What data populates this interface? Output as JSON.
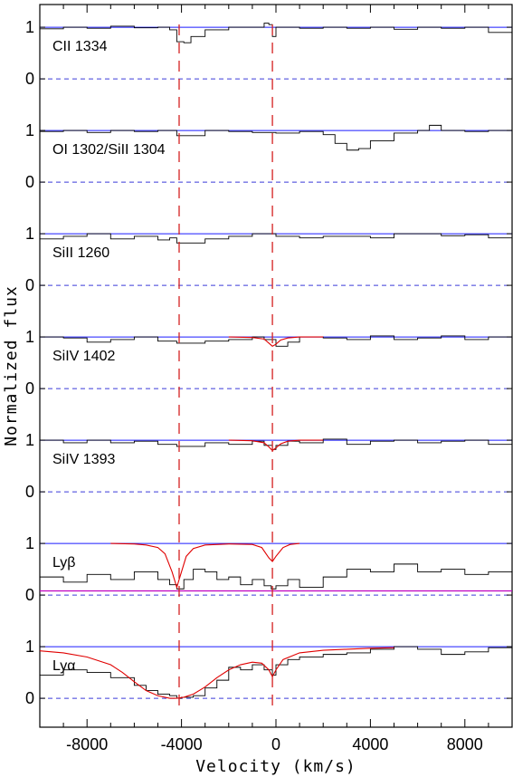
{
  "chart_data": {
    "type": "line",
    "xlabel": "Velocity (km/s)",
    "ylabel": "Normalized flux",
    "xlim": [
      -10000,
      10000
    ],
    "x_ticks": [
      -8000,
      -4000,
      0,
      4000,
      8000
    ],
    "x_tick_labels": [
      "-8000",
      "-4000",
      "0",
      "4000",
      "8000"
    ],
    "y_ticks": [
      0,
      1
    ],
    "y_tick_labels": [
      "0",
      "1"
    ],
    "reference_velocities": [
      -4100,
      -150
    ],
    "colors": {
      "spectrum": "#000000",
      "continuum": "#1a1aff",
      "zero_level": "#3b3bd9",
      "model_fit": "#e00000",
      "background_level": "#c000c0",
      "reference_marker": "#d42020"
    },
    "panels": [
      {
        "label": "CII 1334",
        "spectrum": {
          "x": [
            -10000,
            -9000,
            -8000,
            -7000,
            -6000,
            -5000,
            -4500,
            -4200,
            -3900,
            -3600,
            -3000,
            -2000,
            -1000,
            -500,
            -300,
            -150,
            0,
            500,
            1000,
            2000,
            3000,
            4000,
            5000,
            6000,
            7000,
            8000,
            9000,
            10000
          ],
          "y": [
            0.97,
            1.0,
            0.98,
            1.02,
            0.99,
            1.0,
            0.95,
            0.72,
            0.7,
            0.82,
            0.95,
            1.0,
            1.0,
            1.08,
            1.05,
            0.82,
            1.0,
            1.0,
            0.98,
            1.0,
            0.98,
            1.0,
            0.96,
            1.0,
            0.98,
            1.0,
            0.9,
            0.92
          ]
        }
      },
      {
        "label": "OI 1302/SiII 1304",
        "spectrum": {
          "x": [
            -10000,
            -9000,
            -8000,
            -7000,
            -6000,
            -5000,
            -4200,
            -3000,
            -2000,
            -1000,
            0,
            1000,
            2000,
            2500,
            3000,
            3500,
            4000,
            5000,
            6000,
            6500,
            7000,
            8000,
            9000,
            10000
          ],
          "y": [
            0.98,
            1.0,
            0.96,
            1.0,
            0.98,
            1.0,
            0.9,
            1.0,
            0.98,
            0.96,
            0.95,
            0.98,
            0.92,
            0.75,
            0.62,
            0.65,
            0.8,
            0.95,
            1.0,
            1.1,
            1.0,
            0.98,
            1.0,
            0.95
          ]
        }
      },
      {
        "label": "SiII 1260",
        "spectrum": {
          "x": [
            -10000,
            -9000,
            -8000,
            -7000,
            -6000,
            -5000,
            -4500,
            -4200,
            -3000,
            -2000,
            -1000,
            0,
            1000,
            2000,
            3000,
            4000,
            5000,
            6000,
            7000,
            8000,
            9000,
            10000
          ],
          "y": [
            0.9,
            0.95,
            1.0,
            0.9,
            0.95,
            0.88,
            0.92,
            0.82,
            0.9,
            0.95,
            1.0,
            0.95,
            0.92,
            0.95,
            0.95,
            0.92,
            1.0,
            1.0,
            0.96,
            0.98,
            0.92,
            0.96
          ]
        }
      },
      {
        "label": "SiIV 1402",
        "spectrum": {
          "x": [
            -10000,
            -9000,
            -8000,
            -7000,
            -6000,
            -5000,
            -4200,
            -3000,
            -2000,
            -1000,
            -500,
            0,
            500,
            1000,
            2000,
            3000,
            4000,
            5000,
            6000,
            7000,
            8000,
            9000,
            10000
          ],
          "y": [
            1.0,
            0.98,
            0.9,
            0.95,
            1.0,
            0.92,
            0.88,
            0.92,
            0.95,
            1.0,
            0.95,
            0.82,
            0.9,
            1.0,
            0.98,
            0.95,
            1.02,
            0.95,
            0.98,
            1.02,
            0.95,
            1.0,
            0.98
          ]
        },
        "model": {
          "x": [
            -2000,
            -1000,
            -500,
            -300,
            -150,
            0,
            200,
            500,
            1000,
            2000
          ],
          "y": [
            1.0,
            0.99,
            0.96,
            0.88,
            0.82,
            0.86,
            0.94,
            0.98,
            1.0,
            1.0
          ]
        }
      },
      {
        "label": "SiIV 1393",
        "spectrum": {
          "x": [
            -10000,
            -9000,
            -8000,
            -7000,
            -6000,
            -5000,
            -4200,
            -3000,
            -2000,
            -1000,
            -500,
            -150,
            0,
            500,
            1000,
            2000,
            3000,
            4000,
            5000,
            6000,
            7000,
            8000,
            9000,
            10000
          ],
          "y": [
            1.0,
            0.95,
            1.0,
            0.95,
            0.98,
            0.92,
            0.88,
            0.95,
            0.92,
            0.98,
            0.9,
            0.82,
            0.9,
            0.98,
            0.95,
            1.02,
            0.92,
            0.98,
            1.0,
            0.95,
            0.98,
            1.0,
            0.92,
            0.98
          ]
        },
        "model": {
          "x": [
            -2000,
            -1000,
            -500,
            -300,
            -150,
            0,
            200,
            500,
            1000,
            2000
          ],
          "y": [
            1.0,
            0.99,
            0.95,
            0.87,
            0.8,
            0.85,
            0.93,
            0.98,
            1.0,
            1.0
          ]
        }
      },
      {
        "label": "Lyβ",
        "spectrum": {
          "x": [
            -10000,
            -9000,
            -8000,
            -7000,
            -6000,
            -5000,
            -4500,
            -4200,
            -3900,
            -3500,
            -3000,
            -2500,
            -2000,
            -1500,
            -1000,
            -500,
            -200,
            0,
            500,
            1000,
            2000,
            3000,
            4000,
            5000,
            6000,
            7000,
            8000,
            9000,
            10000
          ],
          "y": [
            0.35,
            0.25,
            0.4,
            0.3,
            0.45,
            0.3,
            0.2,
            0.12,
            0.3,
            0.5,
            0.45,
            0.3,
            0.35,
            0.2,
            0.3,
            0.18,
            0.12,
            0.18,
            0.3,
            0.15,
            0.35,
            0.5,
            0.45,
            0.6,
            0.45,
            0.5,
            0.4,
            0.45,
            0.5
          ]
        },
        "model": {
          "x": [
            -7000,
            -6000,
            -5500,
            -5000,
            -4700,
            -4400,
            -4200,
            -4000,
            -3800,
            -3500,
            -3000,
            -2000,
            -1000,
            -600,
            -300,
            -150,
            0,
            300,
            600,
            1000
          ],
          "y": [
            1.0,
            0.99,
            0.97,
            0.92,
            0.8,
            0.45,
            0.15,
            0.45,
            0.75,
            0.9,
            0.97,
            0.99,
            0.98,
            0.92,
            0.72,
            0.65,
            0.75,
            0.92,
            0.98,
            1.0
          ]
        },
        "background_level": 0.08
      },
      {
        "label": "Lyα",
        "spectrum": {
          "x": [
            -10000,
            -9000,
            -8000,
            -7000,
            -6000,
            -5500,
            -5000,
            -4500,
            -4200,
            -4000,
            -3500,
            -3000,
            -2500,
            -2000,
            -1500,
            -1000,
            -500,
            -150,
            0,
            500,
            1000,
            2000,
            3000,
            4000,
            5000,
            6000,
            7000,
            8000,
            9000,
            10000
          ],
          "y": [
            0.45,
            0.55,
            0.5,
            0.4,
            0.25,
            0.15,
            0.08,
            0.05,
            0.0,
            0.02,
            0.05,
            0.2,
            0.35,
            0.6,
            0.55,
            0.65,
            0.55,
            0.45,
            0.65,
            0.75,
            0.8,
            0.85,
            0.88,
            0.95,
            1.0,
            0.95,
            0.85,
            0.9,
            0.98,
            0.92
          ]
        },
        "model": {
          "x": [
            -10000,
            -9000,
            -8000,
            -7000,
            -6500,
            -6000,
            -5500,
            -5000,
            -4500,
            -4200,
            -3900,
            -3500,
            -3000,
            -2500,
            -2000,
            -1500,
            -1000,
            -600,
            -300,
            -150,
            0,
            300,
            1000,
            2000,
            3000,
            4000,
            5000
          ],
          "y": [
            0.92,
            0.88,
            0.8,
            0.65,
            0.5,
            0.32,
            0.15,
            0.05,
            0.0,
            0.0,
            0.02,
            0.08,
            0.22,
            0.4,
            0.55,
            0.65,
            0.7,
            0.68,
            0.55,
            0.42,
            0.55,
            0.75,
            0.88,
            0.93,
            0.95,
            0.97,
            0.98
          ]
        }
      }
    ]
  }
}
